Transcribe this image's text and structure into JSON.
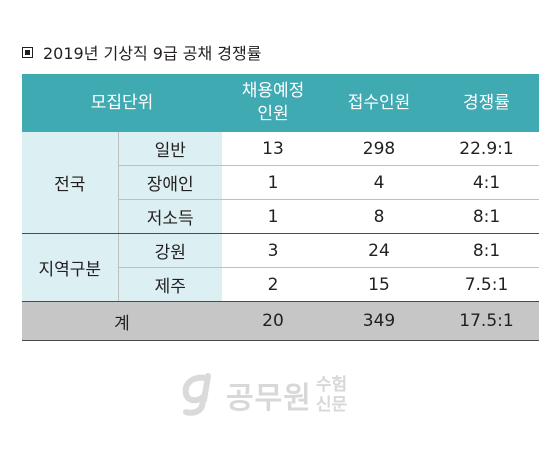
{
  "title": "2019년 기상직 9급 공채 경쟁률",
  "table": {
    "headers": {
      "unit": "모집단위",
      "planned_line1": "채용예정",
      "planned_line2": "인원",
      "applicants": "접수인원",
      "ratio": "경쟁률"
    },
    "groups": [
      {
        "name": "전국",
        "rows": [
          {
            "sub": "일반",
            "planned": "13",
            "applicants": "298",
            "ratio": "22.9:1"
          },
          {
            "sub": "장애인",
            "planned": "1",
            "applicants": "4",
            "ratio": "4:1"
          },
          {
            "sub": "저소득",
            "planned": "1",
            "applicants": "8",
            "ratio": "8:1"
          }
        ]
      },
      {
        "name": "지역구분",
        "rows": [
          {
            "sub": "강원",
            "planned": "3",
            "applicants": "24",
            "ratio": "8:1"
          },
          {
            "sub": "제주",
            "planned": "2",
            "applicants": "15",
            "ratio": "7.5:1"
          }
        ]
      }
    ],
    "total": {
      "label": "계",
      "planned": "20",
      "applicants": "349",
      "ratio": "17.5:1"
    }
  },
  "watermark": {
    "logo_letter": "g",
    "name": "공무원",
    "sub_line1": "수험",
    "sub_line2": "신문"
  },
  "colors": {
    "header_bg": "#40aab3",
    "unit_bg": "#dceff2",
    "total_bg": "#c6c6c6"
  }
}
